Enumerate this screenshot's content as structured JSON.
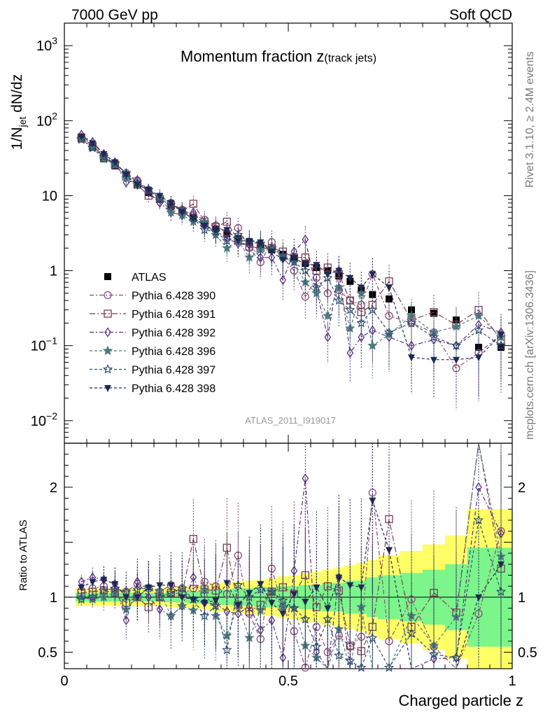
{
  "header": {
    "left": "7000 GeV pp",
    "right": "Soft QCD"
  },
  "side_notes": {
    "rivet": "Rivet 3.1.10, ≥ 2.4M events",
    "source": "mcplots.cern.ch [arXiv:1306.3436]"
  },
  "chart_data": {
    "type": "scatter",
    "title": "Momentum fraction z(track jets)",
    "title_main": "Momentum fraction z",
    "title_sub": "(track jets)",
    "analysis_id": "ATLAS_2011_I919017",
    "xlabel": "Charged particle z",
    "ylabel_main": "1/N",
    "ylabel_sub": "jet",
    "ylabel_end": " dN/dz",
    "ratio_ylabel": "Ratio to ATLAS",
    "xlim": [
      0,
      1
    ],
    "ylim": [
      0.005,
      2000
    ],
    "yscale": "log",
    "ratio_ylim": [
      0.35,
      2.4
    ],
    "x_ticks": [
      0,
      0.5,
      1
    ],
    "x_tick_labels": [
      "0",
      "0.5",
      "1"
    ],
    "y_tick_labels": [
      {
        "v": 1000,
        "base": "10",
        "exp": "3"
      },
      {
        "v": 100,
        "base": "10",
        "exp": "2"
      },
      {
        "v": 10,
        "base": "10",
        "exp": ""
      },
      {
        "v": 1,
        "base": "1",
        "exp": ""
      },
      {
        "v": 0.1,
        "base": "10",
        "exp": "−1"
      },
      {
        "v": 0.01,
        "base": "10",
        "exp": "−2"
      }
    ],
    "ratio_ticks": [
      0.5,
      1,
      2
    ],
    "ratio_tick_labels": [
      "0.5",
      "1",
      "2"
    ],
    "legend_position": "middle-left",
    "x": [
      0.038,
      0.063,
      0.088,
      0.113,
      0.138,
      0.163,
      0.188,
      0.213,
      0.238,
      0.263,
      0.288,
      0.313,
      0.338,
      0.363,
      0.388,
      0.413,
      0.438,
      0.463,
      0.488,
      0.513,
      0.538,
      0.563,
      0.588,
      0.613,
      0.638,
      0.663,
      0.688,
      0.725,
      0.775,
      0.825,
      0.875,
      0.925,
      0.975
    ],
    "series": [
      {
        "name": "ATLAS",
        "color": "#000000",
        "marker": "square-filled",
        "values": [
          57,
          44,
          31,
          25,
          19,
          14,
          11,
          9,
          7.2,
          6.0,
          5.1,
          4.2,
          3.6,
          3.1,
          2.7,
          2.4,
          2.15,
          1.9,
          1.65,
          1.45,
          1.25,
          1.1,
          1.0,
          0.85,
          0.72,
          0.55,
          0.48,
          0.42,
          0.3,
          0.27,
          0.22,
          0.095,
          0.095
        ],
        "ratio": [
          1,
          1,
          1,
          1,
          1,
          1,
          1,
          1,
          1,
          1,
          1,
          1,
          1,
          1,
          1,
          1,
          1,
          1,
          1,
          1,
          1,
          1,
          1,
          1,
          1,
          1,
          1,
          1,
          1,
          1,
          1,
          1,
          1
        ]
      },
      {
        "name": "Pythia 6.428 390",
        "color": "#8e4a78",
        "marker": "circle-open",
        "dash": "6,3,2,3",
        "values": [
          60,
          47,
          34,
          27,
          20,
          16,
          12,
          9.5,
          8.0,
          6.5,
          5.5,
          4.8,
          4.0,
          3.2,
          3.7,
          2.0,
          1.3,
          2.4,
          1.5,
          1.0,
          0.45,
          0.8,
          0.5,
          0.55,
          0.4,
          0.35,
          0.9,
          0.25,
          0.2,
          0.15,
          0.05,
          0.08,
          0.14
        ],
        "ratio": [
          1.06,
          1.08,
          1.1,
          1.07,
          1.05,
          1.12,
          1.08,
          1.05,
          1.11,
          1.08,
          1.08,
          1.14,
          1.1,
          1.03,
          1.38,
          0.85,
          0.62,
          1.26,
          0.91,
          0.69,
          0.36,
          0.73,
          0.5,
          0.65,
          0.55,
          0.64,
          1.95,
          0.6,
          0.98,
          0.55,
          0.23,
          0.85,
          1.6
        ]
      },
      {
        "name": "Pythia 6.428 391",
        "color": "#7a3f52",
        "marker": "square-open",
        "dash": "8,3,2,3",
        "values": [
          59,
          46,
          33,
          26,
          18,
          14,
          10,
          9.0,
          7.5,
          6.2,
          7.8,
          4.5,
          3.8,
          4.5,
          2.5,
          2.1,
          2.0,
          2.0,
          1.8,
          1.5,
          1.5,
          1.0,
          1.1,
          0.9,
          0.4,
          0.28,
          0.35,
          0.72,
          0.22,
          0.28,
          0.19,
          0.3,
          0.12
        ],
        "ratio": [
          1.04,
          1.05,
          1.06,
          1.04,
          0.95,
          1.0,
          0.91,
          1.0,
          1.04,
          1.03,
          1.53,
          1.07,
          1.06,
          1.45,
          0.93,
          0.87,
          0.93,
          1.05,
          1.09,
          1.03,
          1.2,
          0.91,
          1.1,
          1.06,
          0.56,
          0.51,
          0.73,
          1.71,
          0.73,
          1.04,
          0.86,
          3.2,
          1.26
        ]
      },
      {
        "name": "Pythia 6.428 392",
        "color": "#5b2d83",
        "marker": "diamond-open",
        "dash": "6,3,2,3",
        "values": [
          65,
          52,
          36,
          28,
          15,
          16,
          11,
          8.0,
          6.0,
          5.5,
          6.0,
          4.0,
          3.4,
          2.7,
          2.3,
          2.2,
          1.5,
          1.5,
          0.75,
          1.8,
          2.6,
          0.55,
          0.13,
          1.0,
          0.08,
          0.13,
          0.16,
          0.13,
          0.1,
          0.12,
          0.1,
          0.19,
          0.15
        ],
        "ratio": [
          1.14,
          1.18,
          1.16,
          1.12,
          0.79,
          1.14,
          1.0,
          0.89,
          0.83,
          0.92,
          1.18,
          0.95,
          0.94,
          0.87,
          0.85,
          0.92,
          0.7,
          0.79,
          0.45,
          1.24,
          2.08,
          0.5,
          0.13,
          1.18,
          0.11,
          0.24,
          0.33,
          0.31,
          0.33,
          0.44,
          0.45,
          2.0,
          1.58
        ]
      },
      {
        "name": "Pythia 6.428 396",
        "color": "#4f7a80",
        "marker": "star-filled",
        "dash": "4,3",
        "values": [
          57,
          43,
          31,
          26,
          17,
          14,
          12,
          9.5,
          6.0,
          5.5,
          4.5,
          4.5,
          3.0,
          2.0,
          2.5,
          1.5,
          1.9,
          2.0,
          1.5,
          1.3,
          0.7,
          0.5,
          0.25,
          0.6,
          0.17,
          0.5,
          0.1,
          0.14,
          0.25,
          0.15,
          0.18,
          0.25,
          0.13
        ],
        "ratio": [
          1.0,
          0.98,
          1.0,
          1.04,
          0.89,
          1.0,
          1.09,
          1.06,
          0.83,
          0.92,
          0.88,
          1.07,
          0.83,
          0.65,
          0.93,
          0.63,
          0.88,
          1.05,
          0.91,
          0.9,
          0.56,
          0.45,
          0.25,
          0.71,
          0.24,
          0.91,
          0.21,
          0.33,
          0.83,
          0.56,
          0.82,
          2.63,
          1.37
        ]
      },
      {
        "name": "Pythia 6.428 397",
        "color": "#2f4f6b",
        "marker": "star-open",
        "dash": "4,3",
        "values": [
          56,
          44,
          33,
          27,
          20,
          15,
          12,
          9.0,
          7.5,
          6.5,
          5.0,
          3.5,
          3.3,
          2.5,
          3.0,
          2.4,
          2.3,
          2.0,
          1.6,
          1.3,
          1.0,
          0.6,
          0.8,
          0.4,
          0.3,
          0.2,
          0.3,
          0.15,
          0.2,
          0.13,
          0.1,
          0.16,
          0.1
        ],
        "ratio": [
          0.98,
          1.0,
          1.06,
          1.08,
          1.05,
          1.07,
          1.09,
          1.0,
          1.04,
          1.08,
          0.98,
          0.83,
          0.92,
          0.52,
          1.11,
          1.0,
          1.07,
          1.05,
          0.97,
          0.9,
          0.8,
          0.55,
          0.8,
          0.47,
          0.42,
          0.36,
          0.63,
          0.36,
          0.67,
          0.48,
          0.45,
          1.7,
          1.05
        ]
      },
      {
        "name": "Pythia 6.428 398",
        "color": "#1e2a55",
        "marker": "triangle-down-filled",
        "dash": "4,3",
        "values": [
          62,
          50,
          36,
          28,
          19,
          14,
          12,
          10,
          8.0,
          6.0,
          5.0,
          4.0,
          3.5,
          3.5,
          2.5,
          2.5,
          2.4,
          1.8,
          1.4,
          1.5,
          1.2,
          1.2,
          0.9,
          1.0,
          0.8,
          0.6,
          0.9,
          0.6,
          0.07,
          0.065,
          0.065,
          0.07,
          0.14
        ],
        "ratio": [
          1.09,
          1.14,
          1.16,
          1.12,
          1.0,
          1.0,
          1.09,
          1.11,
          1.11,
          1.0,
          0.98,
          0.95,
          0.97,
          1.13,
          0.93,
          1.04,
          1.12,
          0.95,
          0.85,
          1.03,
          0.96,
          1.09,
          0.9,
          1.18,
          1.11,
          1.09,
          1.88,
          1.43,
          0.23,
          0.24,
          0.3,
          1.0,
          1.3
        ]
      }
    ],
    "band_edges": [
      0.025,
      0.05,
      0.075,
      0.1,
      0.125,
      0.15,
      0.175,
      0.2,
      0.225,
      0.25,
      0.275,
      0.3,
      0.325,
      0.35,
      0.375,
      0.4,
      0.425,
      0.45,
      0.475,
      0.5,
      0.525,
      0.55,
      0.575,
      0.6,
      0.625,
      0.65,
      0.675,
      0.7,
      0.75,
      0.8,
      0.85,
      0.9,
      0.95,
      1.0
    ],
    "band_stat_frac": [
      0.04,
      0.04,
      0.04,
      0.04,
      0.04,
      0.04,
      0.04,
      0.04,
      0.045,
      0.05,
      0.055,
      0.06,
      0.07,
      0.07,
      0.08,
      0.08,
      0.09,
      0.09,
      0.1,
      0.1,
      0.11,
      0.11,
      0.13,
      0.13,
      0.15,
      0.15,
      0.18,
      0.2,
      0.22,
      0.25,
      0.3,
      0.45,
      0.45
    ],
    "band_tot_frac": [
      0.08,
      0.08,
      0.08,
      0.08,
      0.08,
      0.08,
      0.08,
      0.08,
      0.09,
      0.1,
      0.1,
      0.11,
      0.13,
      0.13,
      0.14,
      0.15,
      0.16,
      0.17,
      0.19,
      0.2,
      0.22,
      0.23,
      0.25,
      0.27,
      0.29,
      0.31,
      0.34,
      0.38,
      0.42,
      0.48,
      0.56,
      0.8,
      0.8
    ]
  }
}
